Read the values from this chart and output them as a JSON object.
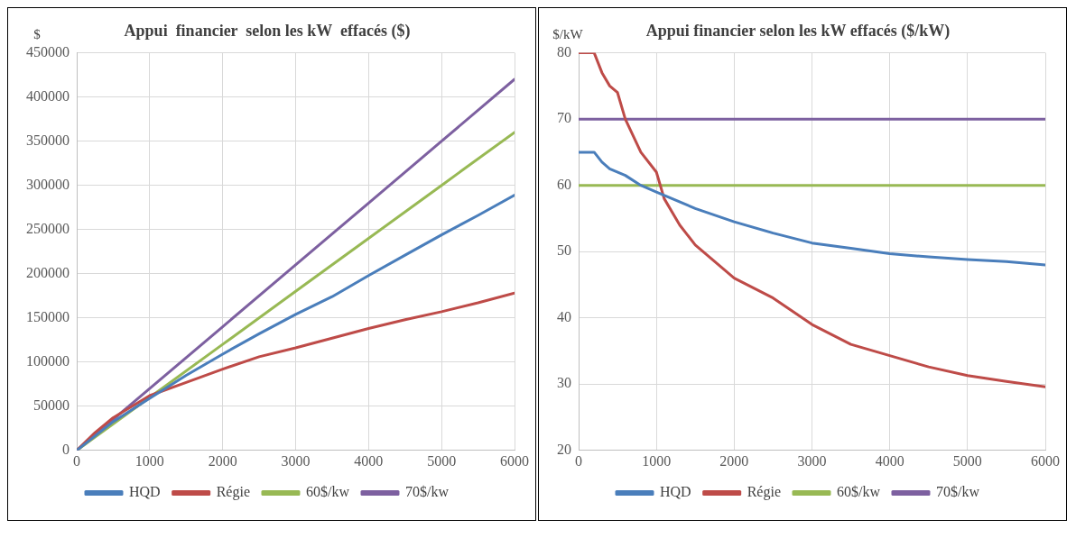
{
  "chart_data": [
    {
      "type": "line",
      "title": "Appui  financier  selon les kW  effacés ($)",
      "ylabel": "$",
      "xlim": [
        0,
        6000
      ],
      "xticks": [
        0,
        1000,
        2000,
        3000,
        4000,
        5000,
        6000
      ],
      "ylim": [
        0,
        450000
      ],
      "yticks": [
        0,
        50000,
        100000,
        150000,
        200000,
        250000,
        300000,
        350000,
        400000,
        450000
      ],
      "grid": true,
      "legend": "bottom",
      "marker": "none",
      "line_style": "solid",
      "series": [
        {
          "name": "HQD",
          "color": "#4a7ebb",
          "x": [
            0,
            500,
            1000,
            1500,
            2000,
            2500,
            3000,
            3500,
            4000,
            4500,
            5000,
            5500,
            6000
          ],
          "values": [
            0,
            32500,
            59000,
            85000,
            109000,
            132000,
            154000,
            174000,
            198000,
            221000,
            244000,
            266000,
            289000
          ]
        },
        {
          "name": "Régie",
          "color": "#be4b48",
          "x": [
            0,
            250,
            500,
            1000,
            1500,
            2000,
            2500,
            3000,
            3500,
            4000,
            4500,
            5000,
            5500,
            6000
          ],
          "values": [
            0,
            20000,
            37000,
            62000,
            77000,
            92000,
            106000,
            116000,
            127000,
            138000,
            148000,
            157000,
            167000,
            178000
          ]
        },
        {
          "name": "60$/kw",
          "color": "#98b954",
          "x": [
            0,
            1000,
            2000,
            3000,
            4000,
            5000,
            6000
          ],
          "values": [
            0,
            60000,
            120000,
            180000,
            240000,
            300000,
            360000
          ]
        },
        {
          "name": "70$/kw",
          "color": "#7d60a0",
          "x": [
            0,
            1000,
            2000,
            3000,
            4000,
            5000,
            6000
          ],
          "values": [
            0,
            70000,
            140000,
            210000,
            280000,
            350000,
            420000
          ]
        }
      ]
    },
    {
      "type": "line",
      "title": "Appui financier selon les kW effacés ($/kW)",
      "ylabel": "$/kW",
      "xlim": [
        0,
        6000
      ],
      "xticks": [
        0,
        1000,
        2000,
        3000,
        4000,
        5000,
        6000
      ],
      "ylim": [
        20,
        80
      ],
      "yticks": [
        20,
        30,
        40,
        50,
        60,
        70,
        80
      ],
      "grid": true,
      "legend": "bottom",
      "marker": "none",
      "line_style": "solid",
      "series": [
        {
          "name": "HQD",
          "color": "#4a7ebb",
          "x": [
            0,
            200,
            300,
            400,
            600,
            800,
            1000,
            1200,
            1500,
            2000,
            2500,
            3000,
            3500,
            4000,
            4500,
            5000,
            5500,
            6000
          ],
          "values": [
            65,
            65,
            63.5,
            62.5,
            61.5,
            60,
            59,
            58,
            56.5,
            54.5,
            52.8,
            51.3,
            50.5,
            49.7,
            49.2,
            48.8,
            48.5,
            48
          ]
        },
        {
          "name": "Régie",
          "color": "#be4b48",
          "x": [
            0,
            200,
            300,
            400,
            500,
            600,
            800,
            1000,
            1100,
            1300,
            1500,
            2000,
            2500,
            3000,
            3500,
            4000,
            4500,
            5000,
            5500,
            6000
          ],
          "values": [
            80,
            80,
            77,
            75,
            74,
            70,
            65,
            62,
            58,
            54,
            51,
            46,
            43,
            39,
            36,
            34.3,
            32.6,
            31.3,
            30.4,
            29.6
          ]
        },
        {
          "name": "60$/kw",
          "color": "#98b954",
          "x": [
            0,
            6000
          ],
          "values": [
            60,
            60
          ]
        },
        {
          "name": "70$/kw",
          "color": "#7d60a0",
          "x": [
            0,
            6000
          ],
          "values": [
            70,
            70
          ]
        }
      ]
    }
  ]
}
